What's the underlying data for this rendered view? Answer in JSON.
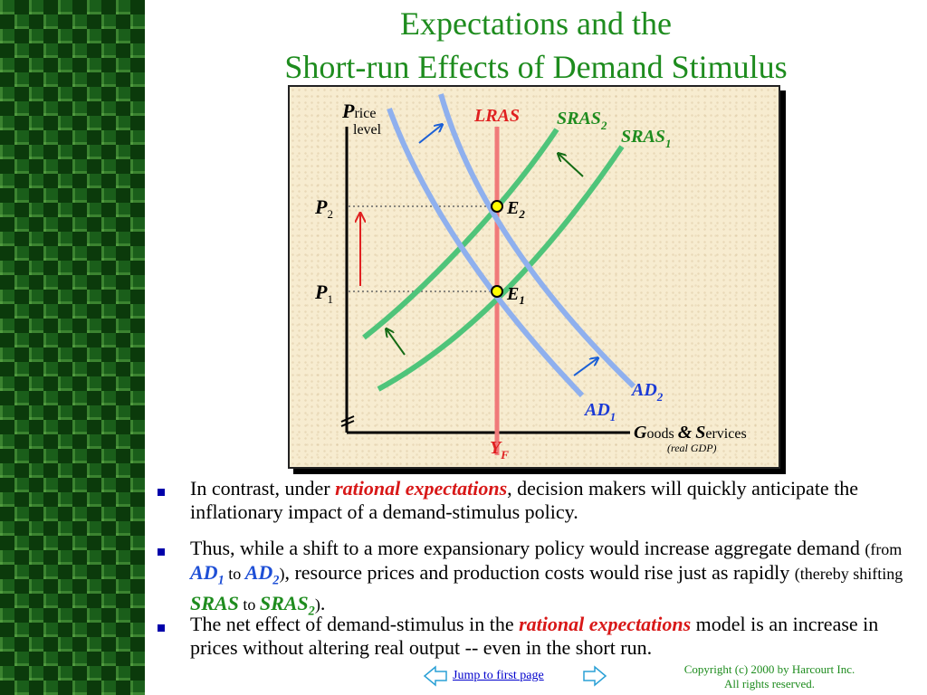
{
  "slide": {
    "title_line1": "Expectations and the",
    "title_line2": "Short-run Effects of Demand Stimulus"
  },
  "diagram": {
    "y_axis": {
      "initial": "P",
      "rest": "rice",
      "line2": "level"
    },
    "x_axis": {
      "initial1": "G",
      "rest1": "oods",
      "amp": "&",
      "initial2": "S",
      "rest2": "ervices",
      "sub": "(real GDP)"
    },
    "curves": {
      "lras": "LRAS",
      "sras2": {
        "main": "SRAS",
        "sub": "2"
      },
      "sras1": {
        "main": "SRAS",
        "sub": "1"
      },
      "ad2": {
        "main": "AD",
        "sub": "2"
      },
      "ad1": {
        "main": "AD",
        "sub": "1"
      }
    },
    "price_levels": {
      "p2": {
        "main": "P",
        "sub": "2"
      },
      "p1": {
        "main": "P",
        "sub": "1"
      }
    },
    "equilibria": {
      "e2": {
        "main": "E",
        "sub": "2"
      },
      "e1": {
        "main": "E",
        "sub": "1"
      }
    },
    "output": {
      "main": "Y",
      "sub": "F"
    },
    "colors": {
      "sras": "#4fc47a",
      "ad": "#8fb0ee",
      "lras": "#f07a7a",
      "green_label": "#1e8c1e",
      "blue_label": "#1a3ad6",
      "red_label": "#e02020",
      "point_fill": "#ffff00"
    }
  },
  "bullets": {
    "b1": {
      "pre": "In contrast, under ",
      "em": "rational expectations",
      "post": ", decision makers will quickly anticipate the inflationary impact of a demand-stimulus policy."
    },
    "b2": {
      "pre": "Thus, while a shift to a more expansionary policy would increase aggregate demand ",
      "from": "(from ",
      "ad1": "AD",
      "ad1_sub": "1",
      "to1": " to ",
      "ad2": "AD",
      "ad2_sub": "2",
      "close1": ")",
      "mid": ", resource prices and production costs would rise just as rapidly ",
      "thereby": "(thereby shifting ",
      "sras": "SRAS",
      "to2": " to ",
      "sras2": "SRAS",
      "sras2_sub": "2",
      "close2": ")",
      "end": "."
    },
    "b3": {
      "pre": "The net effect of demand-stimulus in the ",
      "em": "rational expectations",
      "post": " model is an increase in prices without altering real output -- even in the short run."
    }
  },
  "footer": {
    "jump_label": "Jump to first page",
    "copyright_line1": "Copyright (c) 2000 by Harcourt Inc.",
    "copyright_line2": "All rights reserved."
  }
}
